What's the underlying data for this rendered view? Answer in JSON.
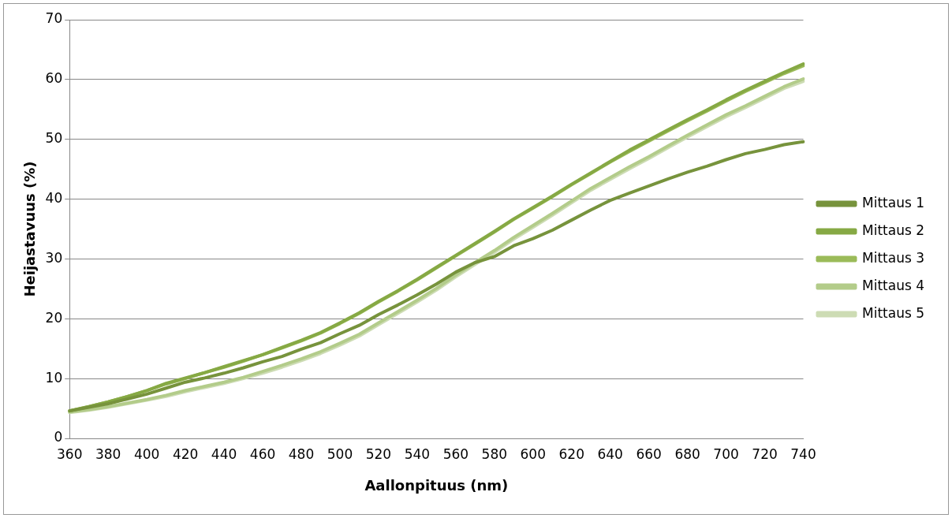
{
  "chart_data": {
    "type": "line",
    "xlabel": "Aallonpituus (nm)",
    "ylabel": "Heijastavuus (%)",
    "categories": [
      "360",
      null,
      "380",
      null,
      "400",
      null,
      "420",
      null,
      "440",
      null,
      "460",
      null,
      "480",
      null,
      "500",
      null,
      "520",
      null,
      "540",
      null,
      "560",
      null,
      "580",
      null,
      "600",
      null,
      "620",
      null,
      "640",
      null,
      "660",
      null,
      "680",
      null,
      "700",
      null,
      "720",
      null,
      "740"
    ],
    "series": [
      {
        "name": "Mittaus 1",
        "color": "#77933c",
        "values": [
          4.6,
          5.2,
          5.8,
          6.6,
          7.4,
          8.4,
          9.4,
          10.1,
          10.9,
          11.8,
          12.8,
          13.7,
          14.9,
          16.0,
          17.5,
          18.9,
          20.7,
          22.3,
          24.0,
          25.8,
          27.8,
          29.4,
          30.4,
          32.2,
          33.4,
          34.8,
          36.5,
          38.2,
          39.8,
          41.0,
          42.2,
          43.4,
          44.5,
          45.5,
          46.6,
          47.6,
          48.3,
          49.1,
          49.6
        ]
      },
      {
        "name": "Mittaus 2",
        "color": "#86a944",
        "values": [
          4.6,
          5.3,
          6.1,
          7.0,
          8.0,
          9.2,
          10.1,
          11.0,
          12.0,
          13.0,
          14.0,
          15.2,
          16.4,
          17.7,
          19.3,
          21.0,
          22.9,
          24.7,
          26.6,
          28.6,
          30.6,
          32.6,
          34.6,
          36.7,
          38.6,
          40.5,
          42.5,
          44.4,
          46.3,
          48.2,
          49.9,
          51.6,
          53.3,
          54.9,
          56.6,
          58.2,
          59.7,
          61.2,
          62.6
        ]
      },
      {
        "name": "Mittaus 3",
        "color": "#9bbb59",
        "values": [
          4.6,
          5.3,
          6.1,
          7.0,
          8.0,
          9.1,
          10.0,
          11.0,
          11.9,
          12.9,
          14.0,
          15.1,
          16.3,
          17.6,
          19.2,
          20.9,
          22.8,
          24.6,
          26.5,
          28.5,
          30.5,
          32.5,
          34.5,
          36.6,
          38.5,
          40.4,
          42.4,
          44.3,
          46.2,
          48.0,
          49.7,
          51.4,
          53.1,
          54.7,
          56.4,
          58.0,
          59.5,
          61.0,
          62.3
        ]
      },
      {
        "name": "Mittaus 4",
        "color": "#b3cc8a",
        "values": [
          4.4,
          4.8,
          5.3,
          5.9,
          6.5,
          7.2,
          8.0,
          8.7,
          9.4,
          10.2,
          11.2,
          12.2,
          13.3,
          14.5,
          15.9,
          17.4,
          19.3,
          21.2,
          23.1,
          25.1,
          27.3,
          29.4,
          31.4,
          33.6,
          35.6,
          37.6,
          39.7,
          41.8,
          43.6,
          45.4,
          47.1,
          48.9,
          50.7,
          52.4,
          54.1,
          55.6,
          57.2,
          58.8,
          60.1
        ]
      },
      {
        "name": "Mittaus 5",
        "color": "#cddcb4",
        "values": [
          4.3,
          4.7,
          5.2,
          5.8,
          6.4,
          7.0,
          7.8,
          8.5,
          9.2,
          10.0,
          10.9,
          11.9,
          13.0,
          14.2,
          15.6,
          17.1,
          19.0,
          20.9,
          22.8,
          24.8,
          27.0,
          29.1,
          31.1,
          33.3,
          35.3,
          37.3,
          39.4,
          41.5,
          43.3,
          45.1,
          46.8,
          48.6,
          50.4,
          52.1,
          53.8,
          55.3,
          56.9,
          58.5,
          59.7
        ]
      }
    ],
    "ylim": [
      0,
      70
    ],
    "yticks": [
      0,
      10,
      20,
      30,
      40,
      50,
      60,
      70
    ],
    "grid": "y",
    "legend": "right",
    "marker": "none",
    "line_style": "solid"
  }
}
